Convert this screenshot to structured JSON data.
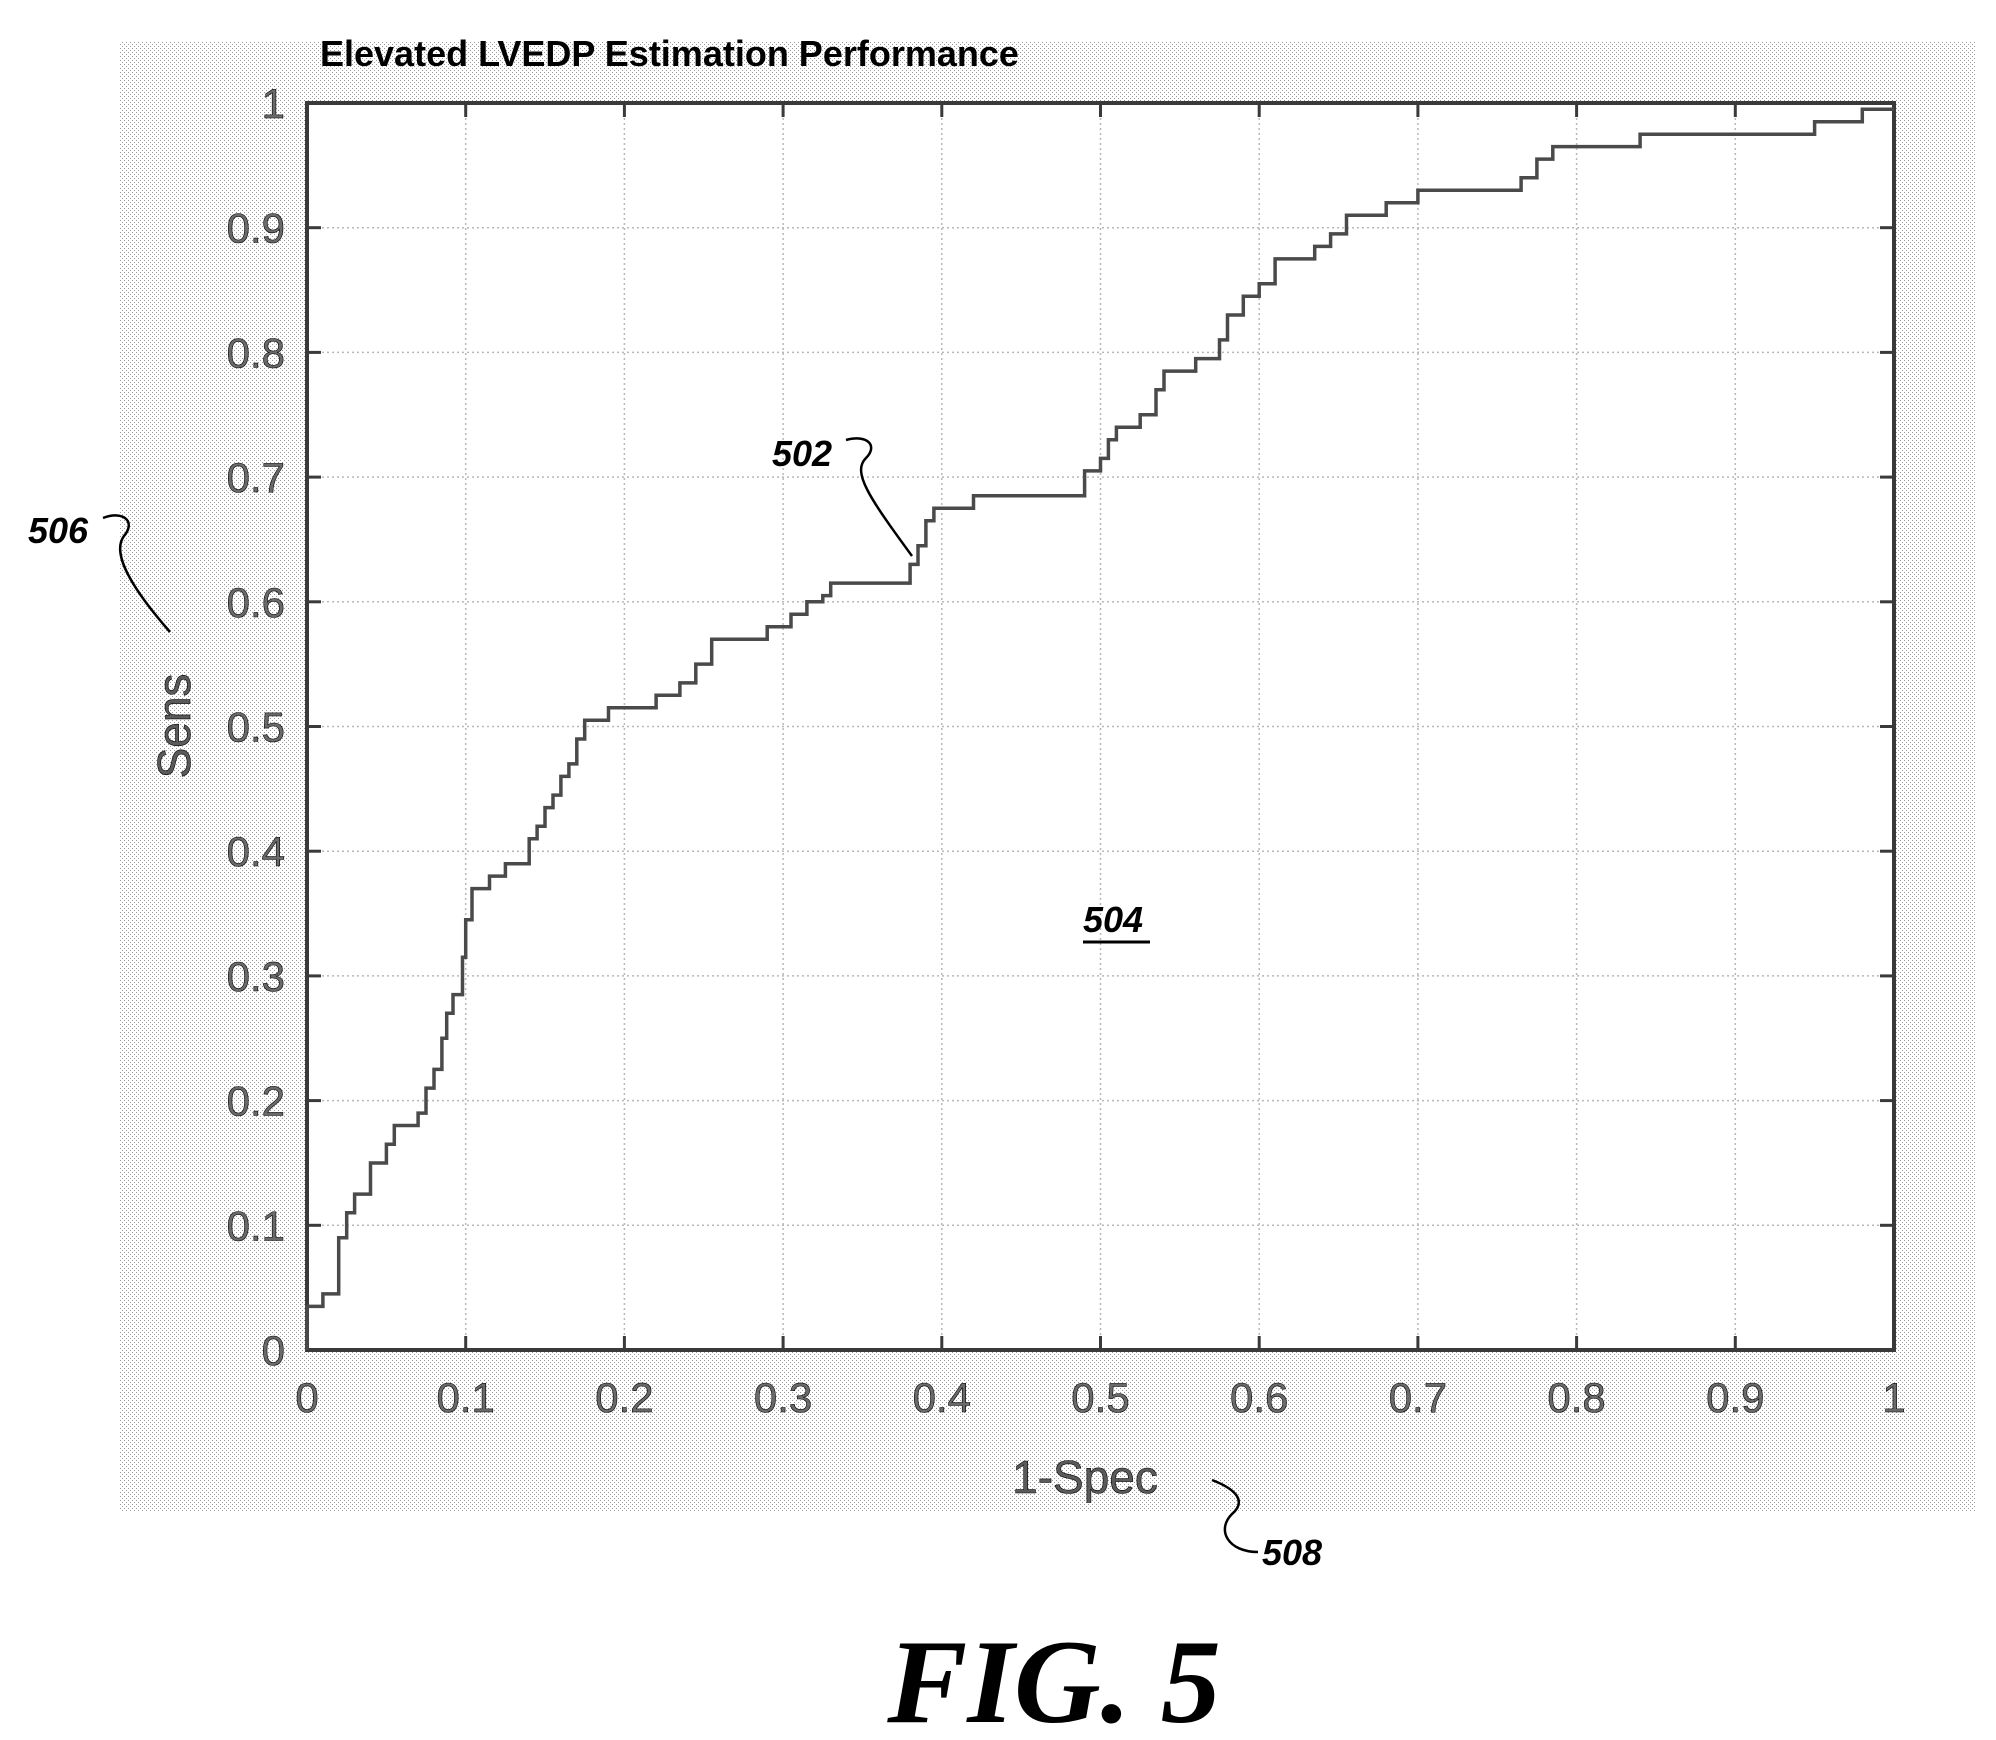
{
  "chart_data": {
    "type": "line",
    "title": "Elevated LVEDP Estimation Performance",
    "xlabel": "1-Spec",
    "ylabel": "Sens",
    "xlim": [
      0,
      1
    ],
    "ylim": [
      0,
      1
    ],
    "grid": true,
    "xticks": [
      "0",
      "0.1",
      "0.2",
      "0.3",
      "0.4",
      "0.5",
      "0.6",
      "0.7",
      "0.8",
      "0.9",
      "1"
    ],
    "yticks": [
      "0",
      "0.1",
      "0.2",
      "0.3",
      "0.4",
      "0.5",
      "0.6",
      "0.7",
      "0.8",
      "0.9",
      "1"
    ],
    "series": [
      {
        "points": [
          [
            0,
            0
          ],
          [
            0,
            0.035
          ],
          [
            0.01,
            0.035
          ],
          [
            0.01,
            0.045
          ],
          [
            0.02,
            0.045
          ],
          [
            0.02,
            0.09
          ],
          [
            0.025,
            0.09
          ],
          [
            0.025,
            0.11
          ],
          [
            0.03,
            0.11
          ],
          [
            0.03,
            0.125
          ],
          [
            0.04,
            0.125
          ],
          [
            0.04,
            0.125
          ],
          [
            0.04,
            0.15
          ],
          [
            0.05,
            0.15
          ],
          [
            0.05,
            0.165
          ],
          [
            0.055,
            0.165
          ],
          [
            0.055,
            0.18
          ],
          [
            0.07,
            0.18
          ],
          [
            0.07,
            0.19
          ],
          [
            0.075,
            0.19
          ],
          [
            0.075,
            0.21
          ],
          [
            0.08,
            0.21
          ],
          [
            0.08,
            0.225
          ],
          [
            0.085,
            0.225
          ],
          [
            0.085,
            0.25
          ],
          [
            0.088,
            0.25
          ],
          [
            0.088,
            0.27
          ],
          [
            0.092,
            0.27
          ],
          [
            0.092,
            0.285
          ],
          [
            0.098,
            0.285
          ],
          [
            0.098,
            0.315
          ],
          [
            0.1,
            0.315
          ],
          [
            0.1,
            0.345
          ],
          [
            0.104,
            0.345
          ],
          [
            0.104,
            0.37
          ],
          [
            0.115,
            0.37
          ],
          [
            0.115,
            0.38
          ],
          [
            0.125,
            0.38
          ],
          [
            0.125,
            0.39
          ],
          [
            0.14,
            0.39
          ],
          [
            0.14,
            0.41
          ],
          [
            0.145,
            0.41
          ],
          [
            0.145,
            0.42
          ],
          [
            0.15,
            0.42
          ],
          [
            0.15,
            0.435
          ],
          [
            0.155,
            0.435
          ],
          [
            0.155,
            0.445
          ],
          [
            0.16,
            0.445
          ],
          [
            0.16,
            0.46
          ],
          [
            0.165,
            0.46
          ],
          [
            0.165,
            0.47
          ],
          [
            0.17,
            0.47
          ],
          [
            0.17,
            0.49
          ],
          [
            0.175,
            0.49
          ],
          [
            0.175,
            0.505
          ],
          [
            0.19,
            0.505
          ],
          [
            0.19,
            0.515
          ],
          [
            0.22,
            0.515
          ],
          [
            0.22,
            0.525
          ],
          [
            0.235,
            0.525
          ],
          [
            0.235,
            0.535
          ],
          [
            0.245,
            0.535
          ],
          [
            0.245,
            0.55
          ],
          [
            0.255,
            0.55
          ],
          [
            0.255,
            0.57
          ],
          [
            0.29,
            0.57
          ],
          [
            0.29,
            0.58
          ],
          [
            0.305,
            0.58
          ],
          [
            0.305,
            0.59
          ],
          [
            0.315,
            0.59
          ],
          [
            0.315,
            0.6
          ],
          [
            0.325,
            0.6
          ],
          [
            0.325,
            0.605
          ],
          [
            0.33,
            0.605
          ],
          [
            0.33,
            0.615
          ],
          [
            0.38,
            0.615
          ],
          [
            0.38,
            0.63
          ],
          [
            0.385,
            0.63
          ],
          [
            0.385,
            0.645
          ],
          [
            0.39,
            0.645
          ],
          [
            0.39,
            0.665
          ],
          [
            0.395,
            0.665
          ],
          [
            0.395,
            0.675
          ],
          [
            0.42,
            0.675
          ],
          [
            0.42,
            0.685
          ],
          [
            0.49,
            0.685
          ],
          [
            0.49,
            0.705
          ],
          [
            0.5,
            0.705
          ],
          [
            0.5,
            0.715
          ],
          [
            0.505,
            0.715
          ],
          [
            0.505,
            0.73
          ],
          [
            0.51,
            0.73
          ],
          [
            0.51,
            0.74
          ],
          [
            0.525,
            0.74
          ],
          [
            0.525,
            0.75
          ],
          [
            0.535,
            0.75
          ],
          [
            0.535,
            0.77
          ],
          [
            0.54,
            0.77
          ],
          [
            0.54,
            0.785
          ],
          [
            0.56,
            0.785
          ],
          [
            0.56,
            0.795
          ],
          [
            0.575,
            0.795
          ],
          [
            0.575,
            0.81
          ],
          [
            0.58,
            0.81
          ],
          [
            0.58,
            0.83
          ],
          [
            0.59,
            0.83
          ],
          [
            0.59,
            0.845
          ],
          [
            0.6,
            0.845
          ],
          [
            0.6,
            0.855
          ],
          [
            0.61,
            0.855
          ],
          [
            0.61,
            0.875
          ],
          [
            0.635,
            0.875
          ],
          [
            0.635,
            0.885
          ],
          [
            0.645,
            0.885
          ],
          [
            0.645,
            0.895
          ],
          [
            0.655,
            0.895
          ],
          [
            0.655,
            0.91
          ],
          [
            0.68,
            0.91
          ],
          [
            0.68,
            0.92
          ],
          [
            0.7,
            0.92
          ],
          [
            0.7,
            0.93
          ],
          [
            0.765,
            0.93
          ],
          [
            0.765,
            0.94
          ],
          [
            0.775,
            0.94
          ],
          [
            0.775,
            0.955
          ],
          [
            0.785,
            0.955
          ],
          [
            0.785,
            0.965
          ],
          [
            0.84,
            0.965
          ],
          [
            0.84,
            0.975
          ],
          [
            0.95,
            0.975
          ],
          [
            0.95,
            0.985
          ],
          [
            0.98,
            0.985
          ],
          [
            0.98,
            0.995
          ],
          [
            1.0,
            0.995
          ]
        ]
      }
    ],
    "annotations": [
      {
        "text": "502",
        "style": "callout"
      },
      {
        "text": "504",
        "style": "underlined"
      },
      {
        "text": "506",
        "style": "callout"
      },
      {
        "text": "508",
        "style": "callout"
      }
    ]
  },
  "figure": {
    "caption": "FIG. 5"
  }
}
